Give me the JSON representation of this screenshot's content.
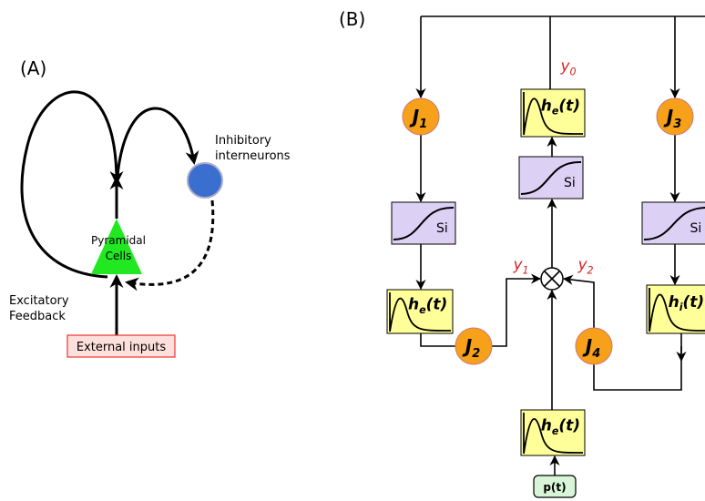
{
  "panel_a": {
    "label": "(A)",
    "inhibitory": [
      "Inhibitory",
      "interneurons"
    ],
    "pyramidal": [
      "Pyramidal",
      "Cells"
    ],
    "feedback": [
      "Excitatory",
      "Feedback"
    ],
    "input": "External inputs"
  },
  "panel_b": {
    "label": "(B)",
    "gains": [
      {
        "base": "J",
        "sub": "1"
      },
      {
        "base": "J",
        "sub": "2"
      },
      {
        "base": "J",
        "sub": "3"
      },
      {
        "base": "J",
        "sub": "4"
      }
    ],
    "sigmoids": [
      "Si",
      "Si",
      "Si"
    ],
    "kernels": [
      {
        "base": "h",
        "sub": "e",
        "rest": "(t)"
      },
      {
        "base": "h",
        "sub": "e",
        "rest": "(t)"
      },
      {
        "base": "h",
        "sub": "i",
        "rest": "(t)"
      },
      {
        "base": "h",
        "sub": "e",
        "rest": "(t)"
      }
    ],
    "outputs": [
      {
        "base": "y",
        "sub": "0"
      },
      {
        "base": "y",
        "sub": "1"
      },
      {
        "base": "y",
        "sub": "2"
      }
    ],
    "input": "p(t)"
  }
}
